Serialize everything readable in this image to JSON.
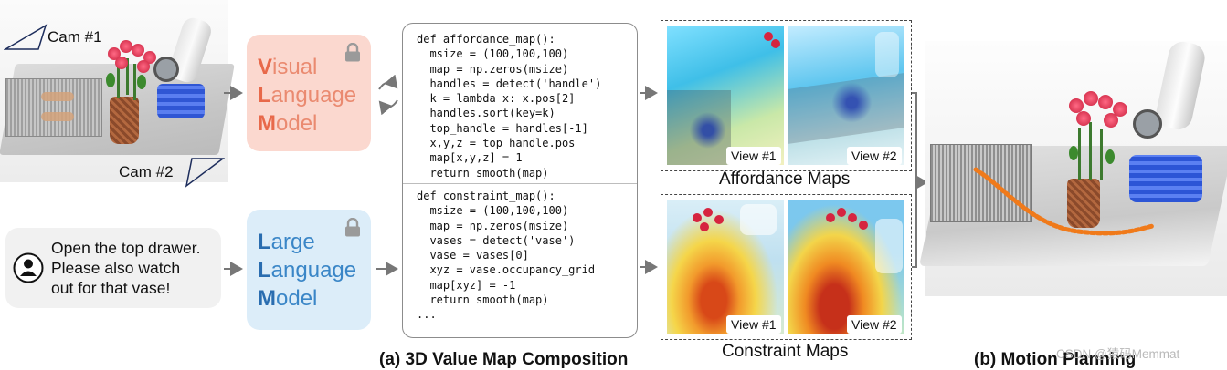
{
  "left_scene": {
    "cam1_label": "Cam #1",
    "cam2_label": "Cam #2"
  },
  "vlm": {
    "line1_initial": "V",
    "line1_rest": "isual",
    "line2_initial": "L",
    "line2_rest": "anguage",
    "line3_initial": "M",
    "line3_rest": "odel"
  },
  "llm": {
    "line1_initial": "L",
    "line1_rest": "arge",
    "line2_initial": "L",
    "line2_rest": "anguage",
    "line3_initial": "M",
    "line3_rest": "odel"
  },
  "user_instruction": {
    "line1": "Open the top drawer.",
    "line2": "Please also watch",
    "line3": "out for that vase!"
  },
  "code": {
    "affordance_block": "def affordance_map():\n  msize = (100,100,100)\n  map = np.zeros(msize)\n  handles = detect('handle')\n  k = lambda x: x.pos[2]\n  handles.sort(key=k)\n  top_handle = handles[-1]\n  x,y,z = top_handle.pos\n  map[x,y,z] = 1\n  return smooth(map)",
    "constraint_block": "def constraint_map():\n  msize = (100,100,100)\n  map = np.zeros(msize)\n  vases = detect('vase')\n  vase = vases[0]\n  xyz = vase.occupancy_grid\n  map[xyz] = -1\n  return smooth(map)\n..."
  },
  "affordance_maps": {
    "title": "Affordance Maps",
    "view1": "View #1",
    "view2": "View #2"
  },
  "constraint_maps": {
    "title": "Constraint Maps",
    "view1": "View #1",
    "view2": "View #2"
  },
  "captions": {
    "a": "(a) 3D Value Map Composition",
    "b": "(b) Motion Planning"
  },
  "watermark": "CSDN @猿码Memmat",
  "colors": {
    "vlm_bg": "#fbd8cf",
    "vlm_text": "#e8694a",
    "llm_bg": "#dcedf9",
    "llm_text": "#2a6db0",
    "trajectory": "#f07a1a"
  }
}
